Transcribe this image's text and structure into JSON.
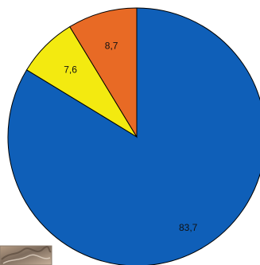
{
  "chart_data": {
    "type": "pie",
    "slices": [
      {
        "label": "83,7",
        "value": 83.7,
        "color": "#0f5fb8"
      },
      {
        "label": "7,6",
        "value": 7.6,
        "color": "#f3ea10"
      },
      {
        "label": "8,7",
        "value": 8.7,
        "color": "#e86a25"
      }
    ],
    "start_angle_deg": 0,
    "direction": "clockwise"
  },
  "inset_photo": {
    "icon": "textured-photo-thumbnail"
  }
}
